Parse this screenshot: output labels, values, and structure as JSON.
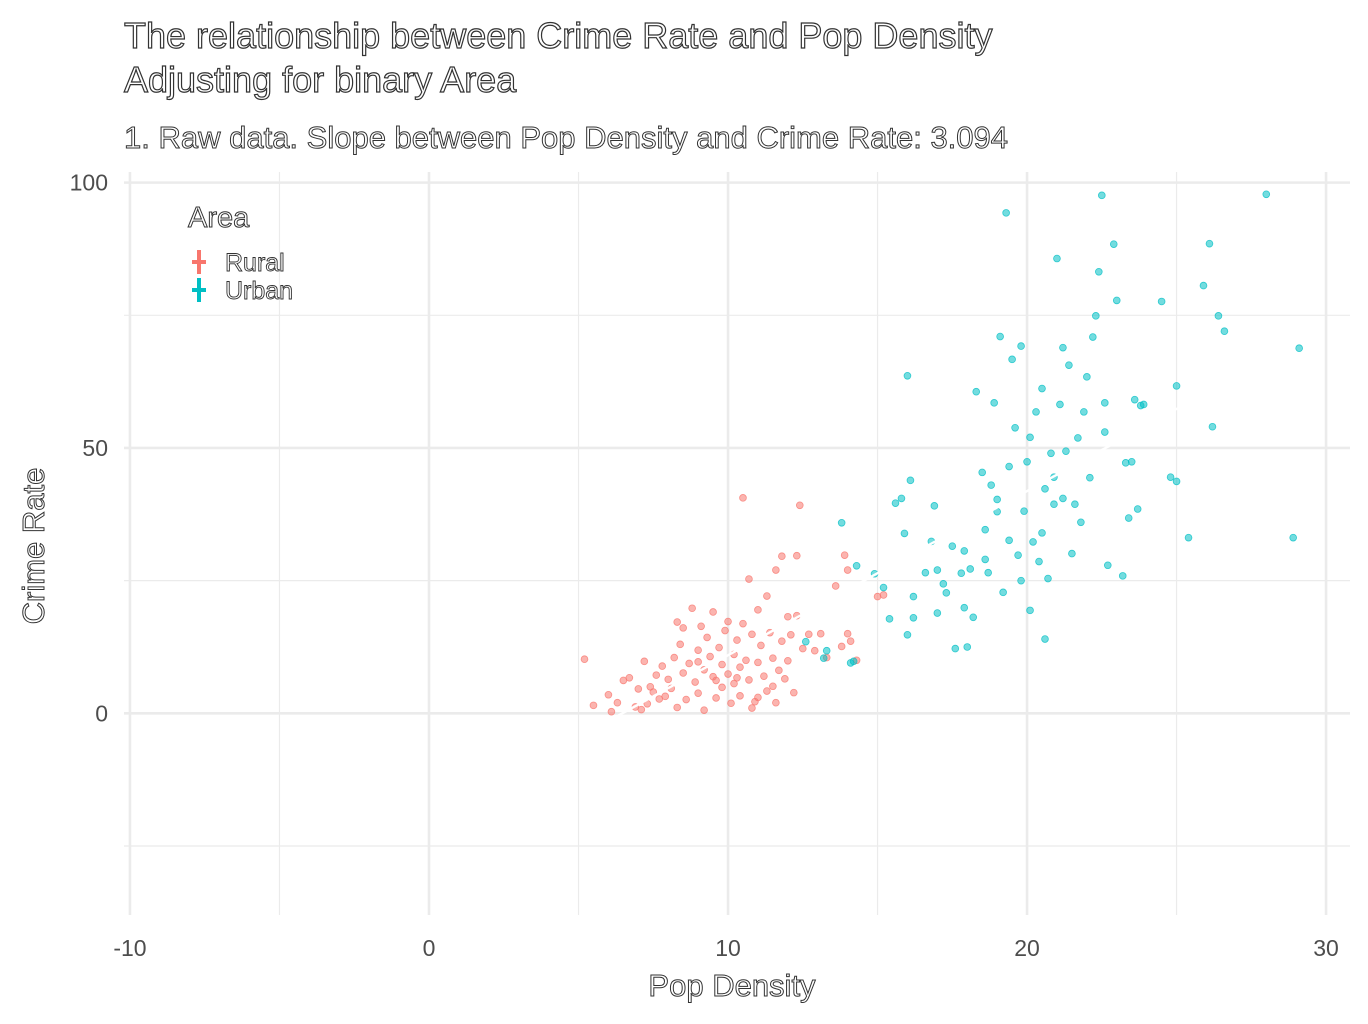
{
  "chart_data": {
    "type": "scatter",
    "title": [
      "The relationship between Crime Rate and Pop Density",
      "Adjusting for binary Area"
    ],
    "subtitle": "1. Raw data. Slope between Pop Density and Crime Rate: 3.094",
    "xlabel": "Pop Density",
    "ylabel": "Crime Rate",
    "xlim": [
      -10.2,
      30.8
    ],
    "ylim": [
      -38,
      102
    ],
    "x_ticks": [
      -10,
      0,
      10,
      20,
      30
    ],
    "y_ticks": [
      0,
      50,
      100
    ],
    "grid": true,
    "legend": {
      "title": "Area",
      "placement": "top-left"
    },
    "trend_line": {
      "slope": 3.094,
      "intercept": -20,
      "x_range": [
        6.3,
        25.5
      ],
      "color": "#ffffff"
    },
    "series": [
      {
        "name": "Rural",
        "color": "#F8766D",
        "points": [
          [
            5.2,
            10.2
          ],
          [
            5.5,
            1.5
          ],
          [
            6.0,
            3.5
          ],
          [
            6.1,
            0.3
          ],
          [
            6.3,
            2.0
          ],
          [
            6.5,
            6.2
          ],
          [
            6.7,
            6.7
          ],
          [
            6.9,
            1.2
          ],
          [
            7.0,
            4.6
          ],
          [
            7.2,
            9.8
          ],
          [
            7.3,
            1.8
          ],
          [
            7.4,
            5.0
          ],
          [
            7.5,
            4.0
          ],
          [
            7.6,
            7.2
          ],
          [
            7.7,
            2.7
          ],
          [
            7.8,
            8.9
          ],
          [
            7.9,
            3.2
          ],
          [
            8.0,
            6.4
          ],
          [
            8.1,
            4.7
          ],
          [
            8.2,
            10.5
          ],
          [
            8.3,
            1.1
          ],
          [
            8.4,
            13.0
          ],
          [
            8.5,
            7.6
          ],
          [
            8.5,
            16.1
          ],
          [
            8.6,
            2.6
          ],
          [
            8.7,
            9.4
          ],
          [
            8.8,
            19.8
          ],
          [
            8.9,
            5.9
          ],
          [
            9.0,
            11.9
          ],
          [
            9.0,
            3.8
          ],
          [
            9.1,
            16.4
          ],
          [
            9.2,
            8.2
          ],
          [
            9.2,
            0.6
          ],
          [
            9.3,
            14.3
          ],
          [
            9.4,
            10.7
          ],
          [
            9.5,
            6.9
          ],
          [
            9.5,
            19.1
          ],
          [
            9.6,
            2.9
          ],
          [
            9.7,
            12.4
          ],
          [
            9.8,
            9.2
          ],
          [
            9.8,
            4.9
          ],
          [
            9.9,
            15.6
          ],
          [
            10.0,
            7.4
          ],
          [
            10.0,
            17.3
          ],
          [
            10.1,
            1.9
          ],
          [
            10.2,
            11.1
          ],
          [
            10.2,
            5.6
          ],
          [
            10.3,
            13.8
          ],
          [
            10.4,
            8.7
          ],
          [
            10.4,
            3.3
          ],
          [
            10.5,
            16.9
          ],
          [
            10.5,
            40.6
          ],
          [
            10.6,
            10.0
          ],
          [
            10.7,
            6.3
          ],
          [
            10.7,
            25.3
          ],
          [
            10.8,
            14.9
          ],
          [
            10.9,
            2.2
          ],
          [
            11.0,
            9.6
          ],
          [
            11.0,
            19.5
          ],
          [
            11.1,
            12.8
          ],
          [
            11.2,
            7.0
          ],
          [
            11.3,
            22.1
          ],
          [
            11.3,
            4.2
          ],
          [
            11.4,
            15.2
          ],
          [
            11.5,
            10.4
          ],
          [
            11.6,
            27.0
          ],
          [
            11.6,
            2.0
          ],
          [
            11.7,
            8.1
          ],
          [
            11.8,
            13.6
          ],
          [
            11.8,
            29.6
          ],
          [
            11.9,
            6.5
          ],
          [
            12.0,
            18.2
          ],
          [
            12.0,
            9.9
          ],
          [
            12.1,
            14.8
          ],
          [
            12.2,
            3.9
          ],
          [
            12.3,
            29.7
          ],
          [
            12.4,
            39.2
          ],
          [
            12.5,
            12.2
          ],
          [
            12.7,
            14.9
          ],
          [
            12.9,
            11.8
          ],
          [
            13.1,
            15.0
          ],
          [
            13.3,
            10.5
          ],
          [
            13.6,
            24.0
          ],
          [
            13.8,
            12.6
          ],
          [
            13.9,
            29.8
          ],
          [
            14.0,
            27.0
          ],
          [
            14.0,
            15.0
          ],
          [
            14.1,
            13.6
          ],
          [
            14.3,
            10.0
          ],
          [
            15.0,
            22.0
          ],
          [
            15.2,
            22.3
          ],
          [
            8.3,
            17.2
          ],
          [
            9.6,
            6.2
          ],
          [
            10.8,
            1.0
          ],
          [
            11.5,
            5.1
          ],
          [
            7.1,
            0.7
          ],
          [
            10.3,
            6.7
          ],
          [
            9.0,
            9.7
          ],
          [
            12.3,
            18.4
          ],
          [
            11.0,
            3.0
          ]
        ]
      },
      {
        "name": "Urban",
        "color": "#00BFC4",
        "points": [
          [
            12.6,
            13.5
          ],
          [
            13.2,
            10.4
          ],
          [
            13.3,
            11.8
          ],
          [
            13.8,
            35.9
          ],
          [
            14.1,
            9.5
          ],
          [
            14.2,
            9.8
          ],
          [
            14.3,
            27.8
          ],
          [
            14.9,
            26.3
          ],
          [
            15.2,
            23.7
          ],
          [
            15.4,
            17.8
          ],
          [
            15.6,
            39.6
          ],
          [
            15.8,
            40.5
          ],
          [
            15.9,
            33.9
          ],
          [
            16.0,
            14.8
          ],
          [
            16.0,
            63.6
          ],
          [
            16.1,
            43.9
          ],
          [
            16.2,
            18.0
          ],
          [
            16.6,
            26.5
          ],
          [
            16.8,
            32.4
          ],
          [
            16.9,
            39.1
          ],
          [
            17.0,
            18.9
          ],
          [
            17.2,
            24.4
          ],
          [
            17.3,
            22.7
          ],
          [
            17.6,
            12.2
          ],
          [
            17.8,
            26.4
          ],
          [
            17.9,
            19.9
          ],
          [
            17.9,
            30.6
          ],
          [
            18.0,
            12.5
          ],
          [
            18.1,
            27.2
          ],
          [
            18.2,
            18.1
          ],
          [
            18.3,
            60.6
          ],
          [
            18.5,
            45.4
          ],
          [
            18.6,
            34.6
          ],
          [
            18.7,
            26.5
          ],
          [
            18.8,
            43.0
          ],
          [
            18.9,
            58.5
          ],
          [
            19.0,
            40.3
          ],
          [
            19.1,
            71.0
          ],
          [
            19.2,
            22.8
          ],
          [
            19.3,
            94.3
          ],
          [
            19.4,
            32.6
          ],
          [
            19.5,
            66.7
          ],
          [
            19.6,
            53.8
          ],
          [
            19.7,
            29.8
          ],
          [
            19.8,
            69.2
          ],
          [
            19.9,
            38.1
          ],
          [
            20.0,
            47.4
          ],
          [
            20.1,
            19.4
          ],
          [
            20.1,
            52.0
          ],
          [
            20.2,
            32.3
          ],
          [
            20.3,
            56.8
          ],
          [
            20.4,
            28.6
          ],
          [
            20.5,
            61.2
          ],
          [
            20.6,
            42.3
          ],
          [
            20.7,
            25.4
          ],
          [
            20.8,
            49.0
          ],
          [
            20.9,
            39.4
          ],
          [
            21.0,
            85.7
          ],
          [
            21.1,
            58.2
          ],
          [
            21.2,
            68.9
          ],
          [
            21.3,
            49.4
          ],
          [
            21.4,
            65.6
          ],
          [
            21.5,
            30.1
          ],
          [
            21.6,
            39.4
          ],
          [
            21.7,
            51.9
          ],
          [
            21.9,
            56.8
          ],
          [
            22.0,
            63.4
          ],
          [
            22.1,
            44.4
          ],
          [
            22.2,
            70.9
          ],
          [
            22.3,
            74.9
          ],
          [
            22.4,
            83.2
          ],
          [
            22.5,
            97.6
          ],
          [
            22.6,
            58.5
          ],
          [
            22.7,
            27.9
          ],
          [
            22.9,
            88.4
          ],
          [
            23.0,
            77.8
          ],
          [
            23.2,
            25.9
          ],
          [
            23.3,
            47.2
          ],
          [
            23.4,
            36.8
          ],
          [
            23.5,
            47.4
          ],
          [
            23.6,
            59.1
          ],
          [
            23.7,
            38.5
          ],
          [
            23.9,
            58.2
          ],
          [
            24.5,
            77.6
          ],
          [
            24.8,
            44.5
          ],
          [
            25.0,
            43.7
          ],
          [
            25.0,
            61.7
          ],
          [
            25.4,
            33.1
          ],
          [
            25.9,
            80.6
          ],
          [
            26.1,
            88.5
          ],
          [
            26.2,
            54.0
          ],
          [
            26.4,
            74.9
          ],
          [
            26.6,
            72.0
          ],
          [
            28.0,
            97.8
          ],
          [
            28.9,
            33.1
          ],
          [
            29.1,
            68.8
          ],
          [
            17.5,
            31.5
          ],
          [
            19.0,
            38.0
          ],
          [
            20.5,
            34.0
          ],
          [
            21.2,
            40.5
          ],
          [
            18.6,
            29.0
          ],
          [
            16.2,
            22.0
          ],
          [
            17.0,
            27.0
          ],
          [
            19.8,
            25.0
          ],
          [
            20.9,
            44.5
          ],
          [
            21.8,
            36.0
          ],
          [
            22.6,
            53.0
          ],
          [
            23.8,
            58.0
          ],
          [
            19.4,
            46.5
          ],
          [
            20.6,
            14.0
          ]
        ]
      }
    ]
  }
}
